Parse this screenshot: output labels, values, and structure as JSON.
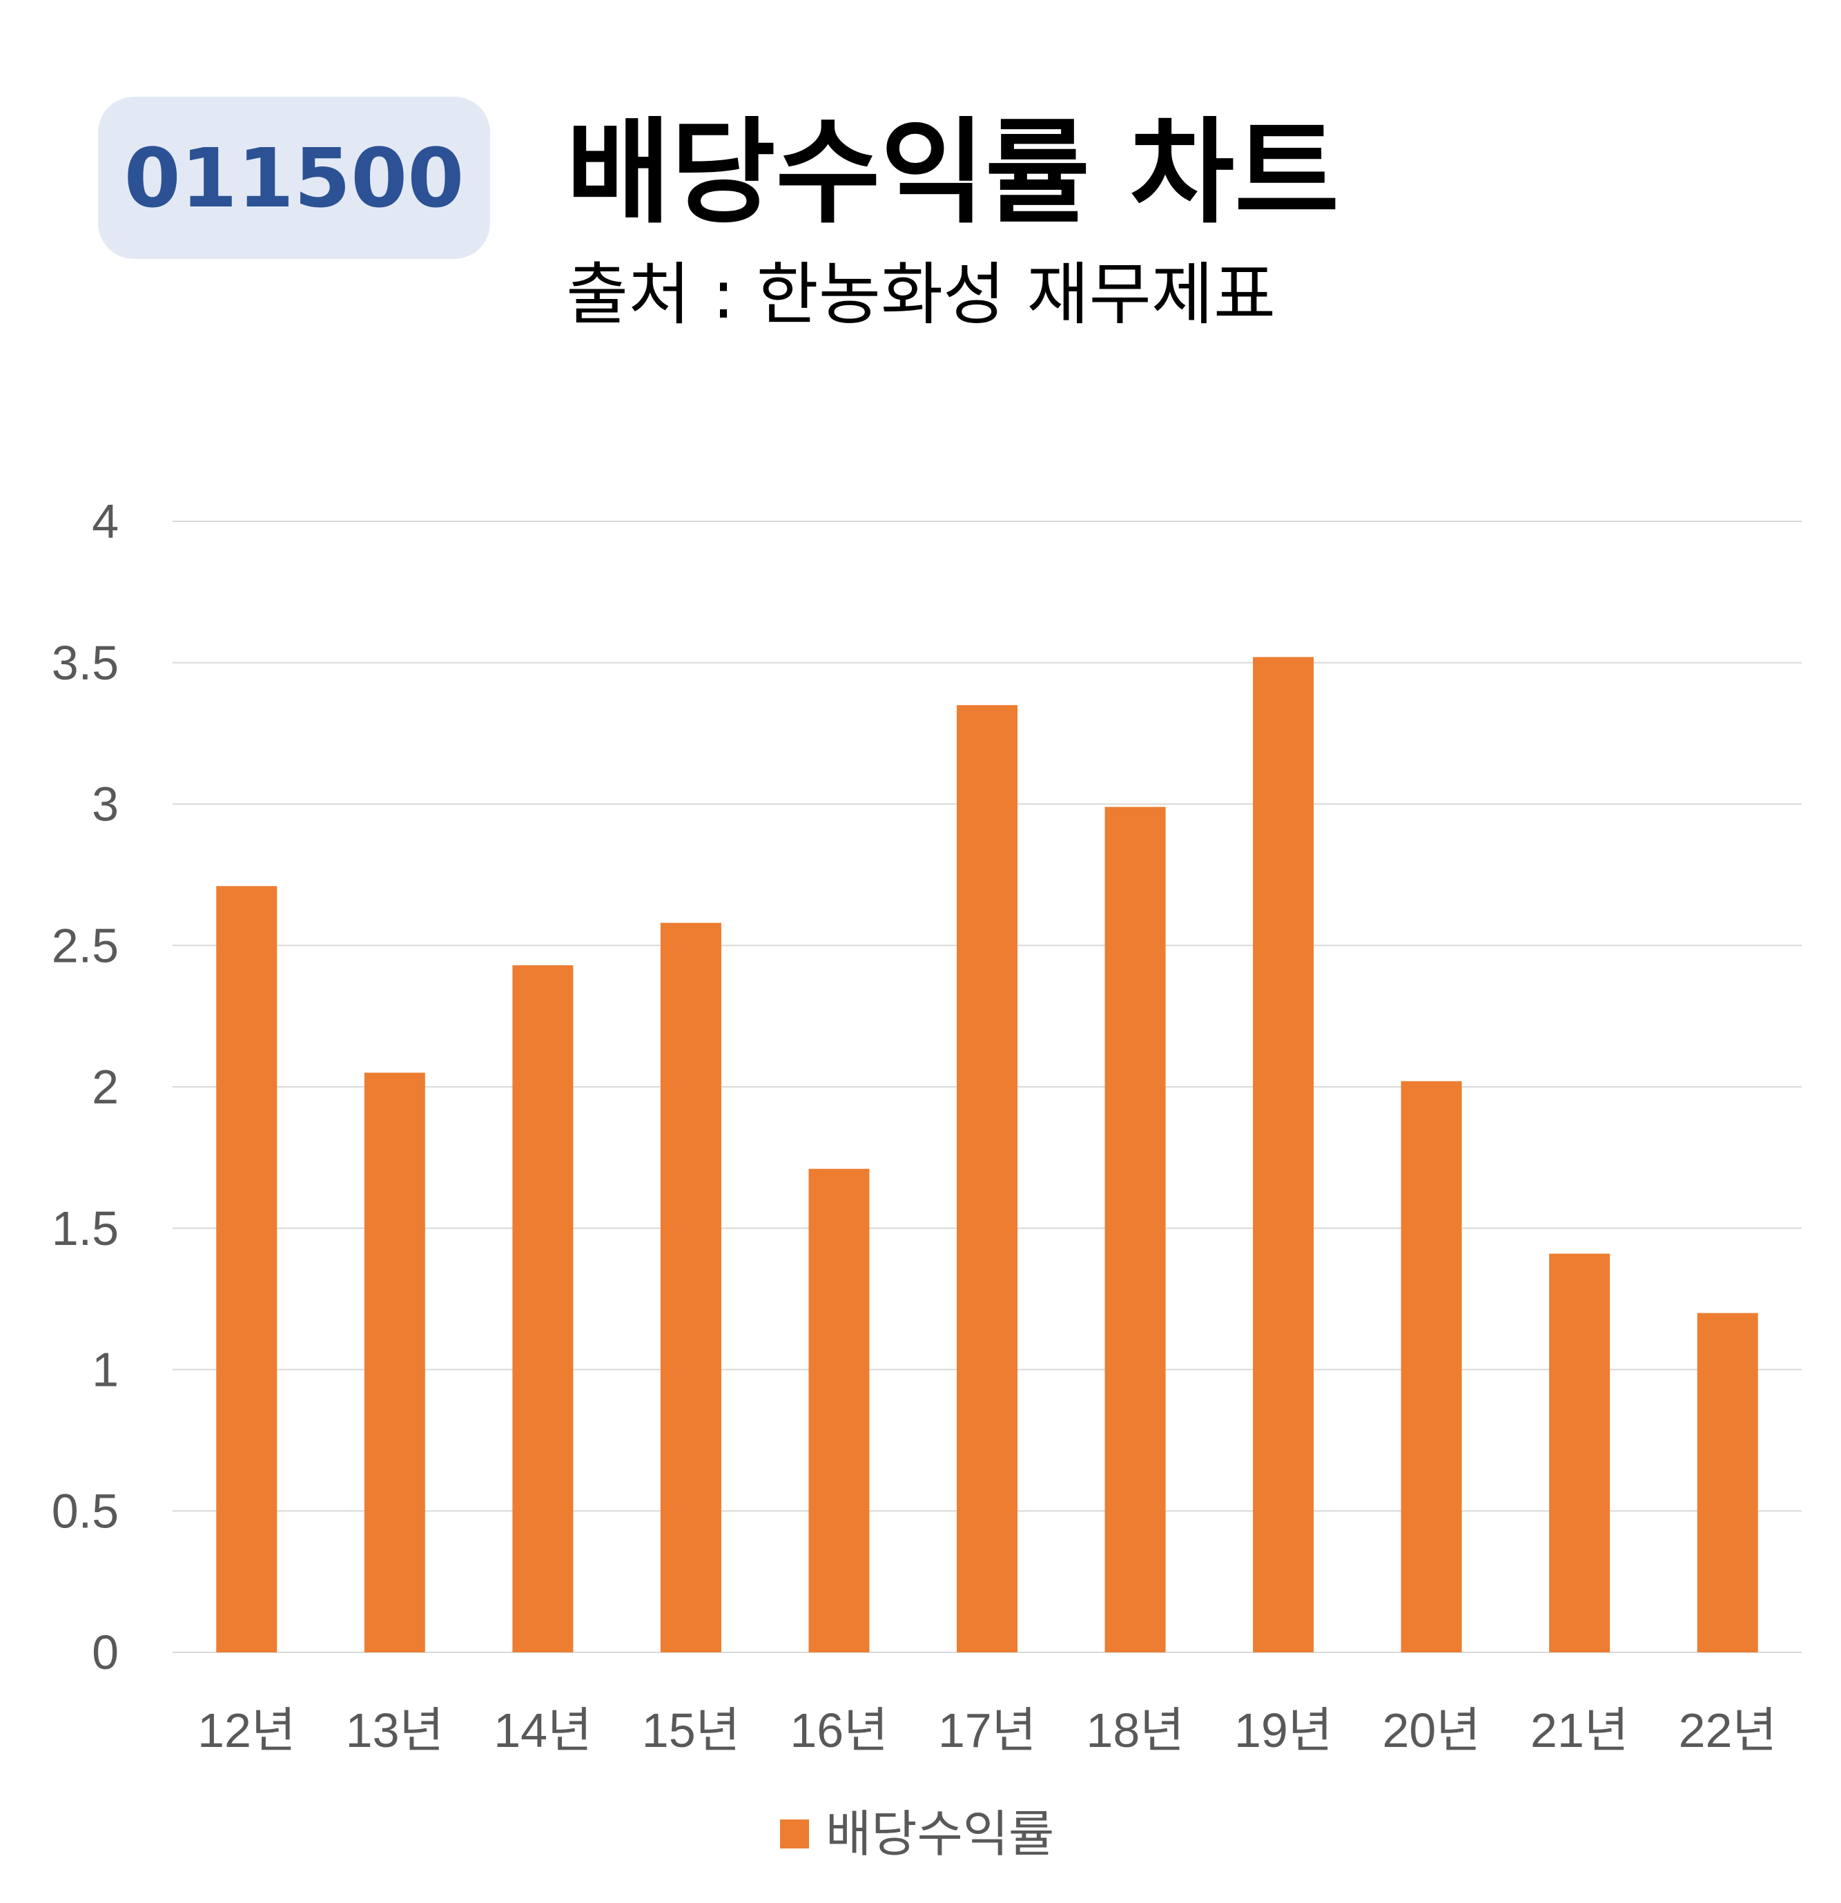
{
  "badge": {
    "code": "011500"
  },
  "header": {
    "title": "배당수익률 차트",
    "subtitle": "출처 : 한농화성 재무제표"
  },
  "colors": {
    "bar": "#ed7d31",
    "grid": "#d9d9d9",
    "axis_text": "#595959",
    "badge_bg": "#e3e9f4",
    "badge_text": "#2c5295"
  },
  "chart_data": {
    "type": "bar",
    "categories": [
      "12년",
      "13년",
      "14년",
      "15년",
      "16년",
      "17년",
      "18년",
      "19년",
      "20년",
      "21년",
      "22년"
    ],
    "series": [
      {
        "name": "배당수익률",
        "values": [
          2.71,
          2.05,
          2.43,
          2.58,
          1.71,
          3.35,
          2.99,
          3.52,
          2.02,
          1.41,
          1.2
        ]
      }
    ],
    "ylim": [
      0,
      4
    ],
    "yticks": [
      "0",
      "0.5",
      "1",
      "1.5",
      "2",
      "2.5",
      "3",
      "3.5",
      "4"
    ],
    "grid": true,
    "legend": "bottom"
  }
}
